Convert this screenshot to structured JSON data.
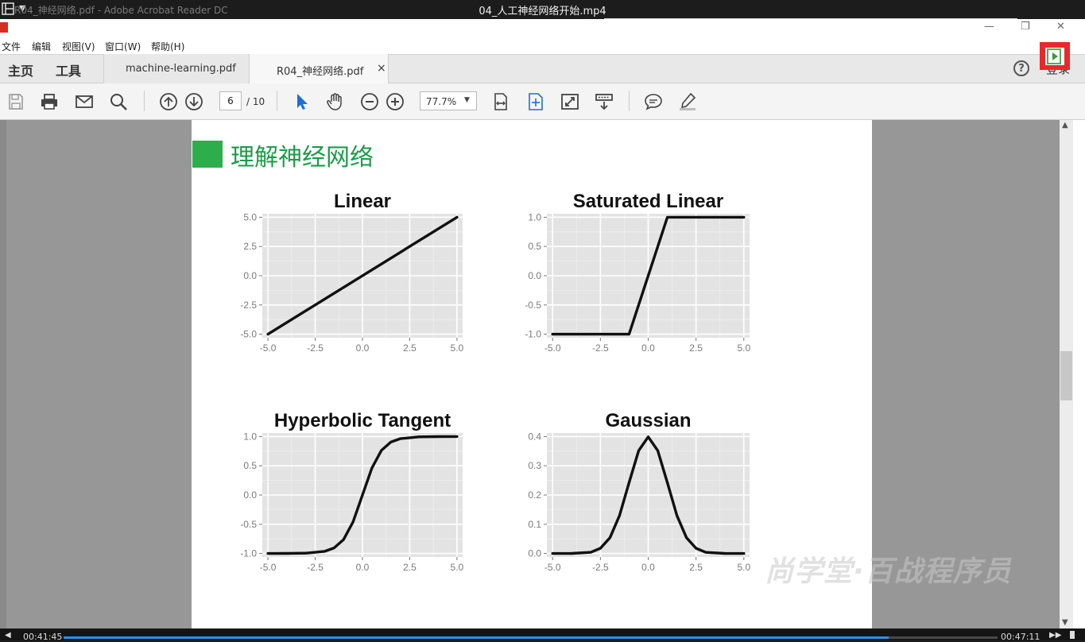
{
  "player": {
    "title": "04_人工神经网络开始.mp4",
    "time_elapsed": "00:41:45",
    "time_total": "00:47:11",
    "progress": 0.883
  },
  "window": {
    "title": "R04_神经网络.pdf - Adobe Acrobat Reader DC",
    "minimize": "—",
    "restore": "❐",
    "close": "✕"
  },
  "menu": [
    "文件",
    "编辑",
    "视图(V)",
    "窗口(W)",
    "帮助(H)"
  ],
  "tabs": {
    "home": "主页",
    "tools": "工具",
    "documents": [
      {
        "label": "machine-learning.pdf"
      },
      {
        "label": "R04_神经网络.pdf",
        "close": "×"
      }
    ],
    "help": "?",
    "login": "登录"
  },
  "toolbar": {
    "page_current": "6",
    "page_total": "/ 10",
    "zoom": "77.7%",
    "icons": [
      "save-icon",
      "print-icon",
      "email-icon",
      "search-icon",
      "page-up-icon",
      "page-down-icon",
      "select-cursor-icon",
      "hand-icon",
      "zoom-out-icon",
      "zoom-in-icon",
      "fit-width-icon",
      "fit-page-icon",
      "fullscreen-icon",
      "read-mode-icon",
      "comment-icon",
      "highlight-icon"
    ]
  },
  "document": {
    "heading": "理解神经网络",
    "watermark": "尚学堂·百战程序员"
  },
  "chart_data": [
    {
      "type": "line",
      "title": "Linear",
      "x": [
        -5,
        5
      ],
      "y": [
        -5,
        5
      ],
      "xlim": [
        -5.3,
        5.3
      ],
      "ylim": [
        -5.3,
        5.3
      ],
      "xticks": [
        -5,
        -2.5,
        0,
        2.5,
        5
      ],
      "xtick_labels": [
        "-5.0",
        "-2.5",
        "0.0",
        "2.5",
        "5.0"
      ],
      "yticks": [
        5,
        2.5,
        0,
        -2.5,
        -5
      ],
      "ytick_labels": [
        "5.0",
        "2.5",
        "0.0",
        "-2.5",
        "-5.0"
      ],
      "grid": true
    },
    {
      "type": "line",
      "title": "Saturated Linear",
      "x": [
        -5,
        -1,
        1,
        5
      ],
      "y": [
        -1,
        -1,
        1,
        1
      ],
      "xlim": [
        -5.3,
        5.3
      ],
      "ylim": [
        -1.06,
        1.06
      ],
      "xticks": [
        -5,
        -2.5,
        0,
        2.5,
        5
      ],
      "xtick_labels": [
        "-5.0",
        "-2.5",
        "0.0",
        "2.5",
        "5.0"
      ],
      "yticks": [
        1,
        0.5,
        0,
        -0.5,
        -1
      ],
      "ytick_labels": [
        "1.0",
        "0.5",
        "0.0",
        "-0.5",
        "-1.0"
      ],
      "grid": true
    },
    {
      "type": "line",
      "title": "Hyperbolic Tangent",
      "x": [
        -5,
        -4,
        -3,
        -2,
        -1.5,
        -1,
        -0.5,
        0,
        0.5,
        1,
        1.5,
        2,
        3,
        4,
        5
      ],
      "y": [
        -1,
        -0.999,
        -0.995,
        -0.964,
        -0.905,
        -0.762,
        -0.462,
        0,
        0.462,
        0.762,
        0.905,
        0.964,
        0.995,
        0.999,
        1
      ],
      "xlim": [
        -5.3,
        5.3
      ],
      "ylim": [
        -1.06,
        1.06
      ],
      "xticks": [
        -5,
        -2.5,
        0,
        2.5,
        5
      ],
      "xtick_labels": [
        "-5.0",
        "-2.5",
        "0.0",
        "2.5",
        "5.0"
      ],
      "yticks": [
        1,
        0.5,
        0,
        -0.5,
        -1
      ],
      "ytick_labels": [
        "1.0",
        "0.5",
        "0.0",
        "-0.5",
        "-1.0"
      ],
      "grid": true
    },
    {
      "type": "line",
      "title": "Gaussian",
      "x": [
        -5,
        -4,
        -3,
        -2.5,
        -2,
        -1.5,
        -1,
        -0.5,
        0,
        0.5,
        1,
        1.5,
        2,
        2.5,
        3,
        4,
        5
      ],
      "y": [
        0,
        0.0001,
        0.004,
        0.018,
        0.054,
        0.13,
        0.242,
        0.352,
        0.399,
        0.352,
        0.242,
        0.13,
        0.054,
        0.018,
        0.004,
        0.0001,
        0
      ],
      "xlim": [
        -5.3,
        5.3
      ],
      "ylim": [
        -0.012,
        0.412
      ],
      "xticks": [
        -5,
        -2.5,
        0,
        2.5,
        5
      ],
      "xtick_labels": [
        "-5.0",
        "-2.5",
        "0.0",
        "2.5",
        "5.0"
      ],
      "yticks": [
        0.4,
        0.3,
        0.2,
        0.1,
        0
      ],
      "ytick_labels": [
        "0.4",
        "0.3",
        "0.2",
        "0.1",
        "0.0"
      ],
      "grid": true
    }
  ]
}
